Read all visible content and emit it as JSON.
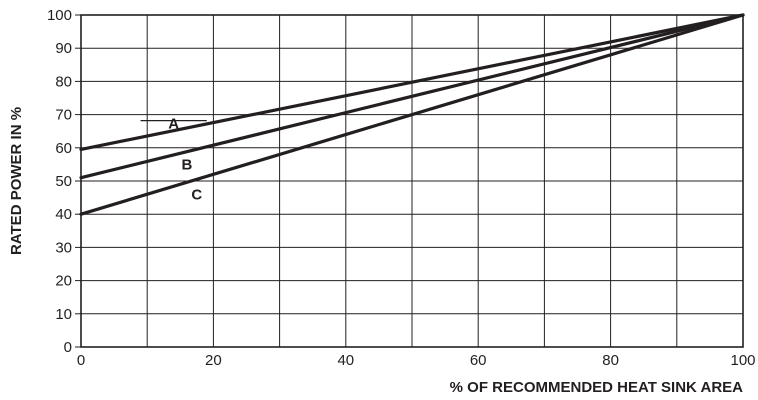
{
  "chart_data": {
    "type": "line",
    "title": "",
    "xlabel": "% OF RECOMMENDED HEAT SINK AREA",
    "ylabel": "RATED POWER IN %",
    "xlim": [
      0,
      100
    ],
    "ylim": [
      0,
      100
    ],
    "x_ticks": [
      0,
      20,
      40,
      60,
      80,
      100
    ],
    "y_ticks": [
      0,
      10,
      20,
      30,
      40,
      50,
      60,
      70,
      80,
      90,
      100
    ],
    "x_grid_step": 10,
    "y_grid_step": 10,
    "grid": true,
    "legend": "none",
    "series": [
      {
        "name": "A",
        "x": [
          0,
          100
        ],
        "y": [
          59.5,
          100
        ]
      },
      {
        "name": "B",
        "x": [
          0,
          100
        ],
        "y": [
          51,
          100
        ]
      },
      {
        "name": "C",
        "x": [
          0,
          100
        ],
        "y": [
          40,
          100
        ]
      }
    ]
  }
}
